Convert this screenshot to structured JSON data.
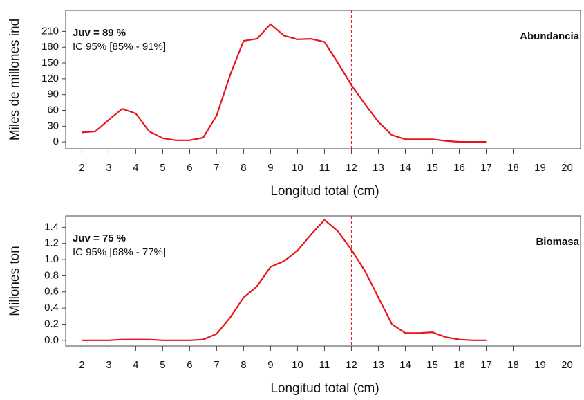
{
  "chart_data": [
    {
      "type": "line",
      "annotation": "Juv = 89 %",
      "interval": "IC 95% [85% - 91%]",
      "label": "Abundancia",
      "y_label": "Miles de millones ind",
      "x_label": "Longitud total (cm)",
      "x": [
        2,
        2.5,
        3,
        3.5,
        4,
        4.5,
        5,
        5.5,
        6,
        6.5,
        7,
        7.5,
        8,
        8.5,
        9,
        9.5,
        10,
        10.5,
        11,
        11.5,
        12,
        12.5,
        13,
        13.5,
        14,
        14.5,
        15,
        15.5,
        16,
        16.5,
        17
      ],
      "series": [
        {
          "color": "#e8141c",
          "values": [
            18,
            20,
            42,
            63,
            54,
            20,
            7,
            3,
            3,
            8,
            50,
            127,
            192,
            196,
            224,
            202,
            195,
            196,
            190,
            150,
            108,
            72,
            38,
            13,
            5,
            5,
            5,
            2,
            0,
            0,
            0
          ]
        }
      ],
      "vline": 12,
      "vline_color": "#e8141c",
      "xlim": [
        1.4,
        20.5
      ],
      "xticks": [
        2,
        3,
        4,
        5,
        6,
        7,
        8,
        9,
        10,
        11,
        12,
        13,
        14,
        15,
        16,
        17,
        18,
        19,
        20
      ],
      "ylim": [
        -13,
        250
      ],
      "yticks": [
        0,
        30,
        60,
        90,
        120,
        150,
        180,
        210
      ]
    },
    {
      "type": "line",
      "annotation": "Juv = 75 %",
      "interval": "IC 95% [68% - 77%]",
      "label": "Biomasa",
      "y_label": "Millones ton",
      "x_label": "Longitud total (cm)",
      "x": [
        2,
        2.5,
        3,
        3.5,
        4,
        4.5,
        5,
        5.5,
        6,
        6.5,
        7,
        7.5,
        8,
        8.5,
        9,
        9.5,
        10,
        10.5,
        11,
        11.5,
        12,
        12.5,
        13,
        13.5,
        14,
        14.5,
        15,
        15.5,
        16,
        16.5,
        17
      ],
      "series": [
        {
          "color": "#e8141c",
          "values": [
            0,
            0,
            0,
            0.01,
            0.01,
            0.01,
            0,
            0,
            0,
            0.01,
            0.08,
            0.28,
            0.53,
            0.67,
            0.91,
            0.98,
            1.11,
            1.31,
            1.49,
            1.35,
            1.12,
            0.86,
            0.53,
            0.2,
            0.09,
            0.09,
            0.1,
            0.04,
            0.01,
            0,
            0
          ]
        }
      ],
      "vline": 12,
      "vline_color": "#e8141c",
      "xlim": [
        1.4,
        20.5
      ],
      "xticks": [
        2,
        3,
        4,
        5,
        6,
        7,
        8,
        9,
        10,
        11,
        12,
        13,
        14,
        15,
        16,
        17,
        18,
        19,
        20
      ],
      "ylim": [
        -0.07,
        1.54
      ],
      "yticks": [
        {
          "value": 0,
          "label": "0.0"
        },
        {
          "value": 0.2,
          "label": "0.2"
        },
        {
          "value": 0.4,
          "label": "0.4"
        },
        {
          "value": 0.6,
          "label": "0.6"
        },
        {
          "value": 0.8,
          "label": "0.8"
        },
        {
          "value": 1.0,
          "label": "1.0"
        },
        {
          "value": 1.2,
          "label": "1.2"
        },
        {
          "value": 1.4,
          "label": "1.4"
        }
      ]
    }
  ]
}
